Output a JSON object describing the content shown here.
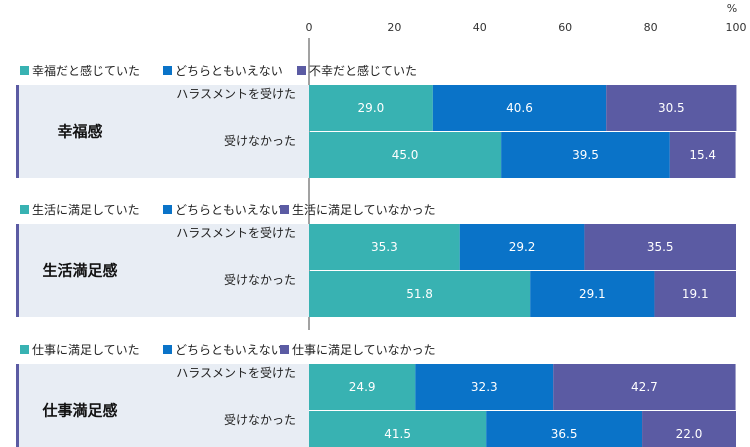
{
  "chart_data": {
    "type": "bar",
    "orientation": "horizontal",
    "stacked": true,
    "unit": "%",
    "xlim": [
      0,
      100
    ],
    "ticks": [
      0,
      20,
      40,
      60,
      80,
      100
    ],
    "colors": [
      "#38b2b2",
      "#0a73c8",
      "#5b5ba3"
    ],
    "background_band": "#e8edf4",
    "groups": [
      {
        "title": "幸福感",
        "legend": [
          "幸福だと感じていた",
          "どちらともいえない",
          "不幸だと感じていた"
        ],
        "rows": [
          {
            "label": "ハラスメントを受けた",
            "values": [
              29.0,
              40.6,
              30.5
            ]
          },
          {
            "label": "受けなかった",
            "values": [
              45.0,
              39.5,
              15.4
            ]
          }
        ]
      },
      {
        "title": "生活満足感",
        "legend": [
          "生活に満足していた",
          "どちらともいえない",
          "生活に満足していなかった"
        ],
        "rows": [
          {
            "label": "ハラスメントを受けた",
            "values": [
              35.3,
              29.2,
              35.5
            ]
          },
          {
            "label": "受けなかった",
            "values": [
              51.8,
              29.1,
              19.1
            ]
          }
        ]
      },
      {
        "title": "仕事満足感",
        "legend": [
          "仕事に満足していた",
          "どちらともいえない",
          "仕事に満足していなかった"
        ],
        "rows": [
          {
            "label": "ハラスメントを受けた",
            "values": [
              24.9,
              32.3,
              42.7
            ]
          },
          {
            "label": "受けなかった",
            "values": [
              41.5,
              36.5,
              22.0
            ]
          }
        ]
      }
    ]
  }
}
